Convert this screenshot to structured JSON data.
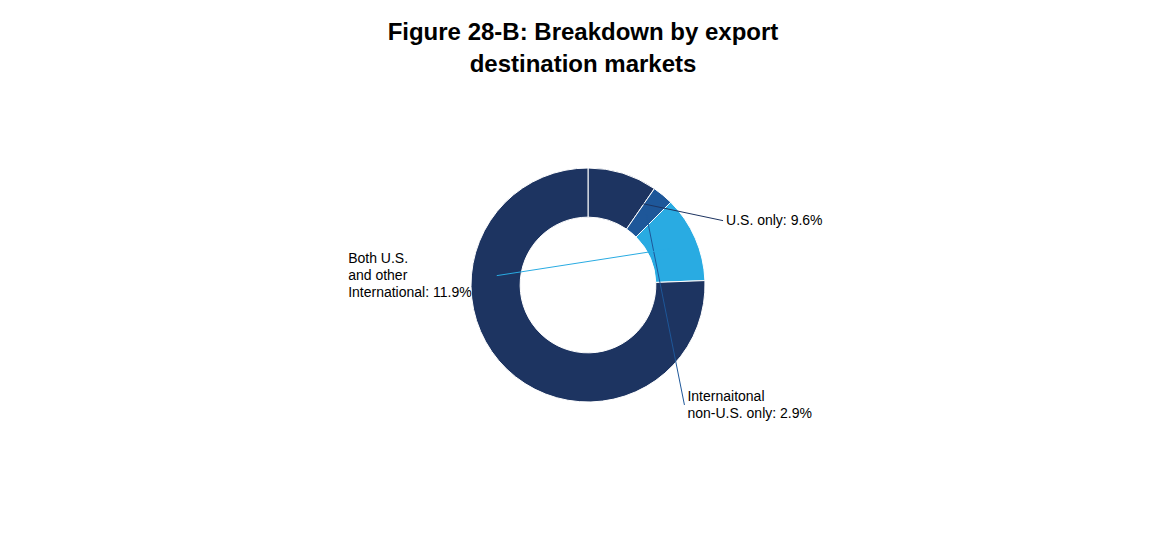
{
  "chart_data": {
    "type": "pie",
    "title": "Figure 28-B: Breakdown by export\ndestination markets",
    "categories": [
      "U.S. only: 9.6%",
      "Internaitonal\nnon-U.S. only: 2.9%",
      "Both U.S.\nand other\nInternational: 11.9%",
      null
    ],
    "values": [
      9.6,
      2.9,
      11.9,
      75.6
    ],
    "colors": [
      "#1d3461",
      "#1e5799",
      "#29abe2",
      "#1d3461"
    ]
  }
}
